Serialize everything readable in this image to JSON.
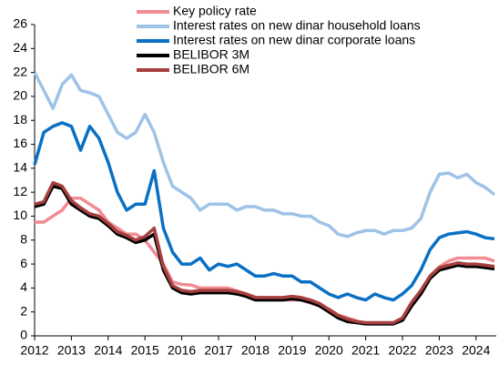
{
  "chart_data": {
    "type": "line",
    "x": [
      2012,
      2012.25,
      2012.5,
      2012.75,
      2013,
      2013.25,
      2013.5,
      2013.75,
      2014,
      2014.25,
      2014.5,
      2014.75,
      2015,
      2015.25,
      2015.5,
      2015.75,
      2016,
      2016.25,
      2016.5,
      2016.75,
      2017,
      2017.25,
      2017.5,
      2017.75,
      2018,
      2018.25,
      2018.5,
      2018.75,
      2019,
      2019.25,
      2019.5,
      2019.75,
      2020,
      2020.25,
      2020.5,
      2020.75,
      2021,
      2021.25,
      2021.5,
      2021.75,
      2022,
      2022.25,
      2022.5,
      2022.75,
      2023,
      2023.25,
      2023.5,
      2023.75,
      2024,
      2024.25,
      2024.5
    ],
    "series": [
      {
        "name": "Key policy rate",
        "color": "#f28b93",
        "values": [
          9.5,
          9.5,
          10.0,
          10.5,
          11.5,
          11.5,
          11.0,
          10.5,
          9.5,
          9.0,
          8.5,
          8.5,
          8.0,
          7.0,
          6.0,
          4.5,
          4.3,
          4.25,
          4.0,
          4.0,
          4.0,
          4.0,
          3.75,
          3.5,
          3.25,
          3.0,
          3.0,
          3.0,
          3.0,
          3.0,
          2.75,
          2.5,
          2.25,
          1.75,
          1.5,
          1.25,
          1.0,
          1.0,
          1.0,
          1.0,
          1.5,
          2.5,
          3.5,
          5.0,
          5.75,
          6.25,
          6.5,
          6.5,
          6.5,
          6.5,
          6.25
        ]
      },
      {
        "name": "Interest rates on new dinar household loans",
        "color": "#9dc3e6",
        "values": [
          22,
          20.5,
          19,
          21,
          21.8,
          20.5,
          20.3,
          20,
          18.5,
          17,
          16.5,
          17,
          18.5,
          17,
          14.5,
          12.5,
          12,
          11.5,
          10.5,
          11,
          11,
          11,
          10.5,
          10.8,
          10.8,
          10.5,
          10.5,
          10.2,
          10.2,
          10,
          10,
          9.5,
          9.2,
          8.5,
          8.3,
          8.6,
          8.8,
          8.8,
          8.5,
          8.8,
          8.8,
          9.0,
          9.8,
          12.0,
          13.5,
          13.6,
          13.2,
          13.5,
          12.8,
          12.4,
          11.8
        ]
      },
      {
        "name": "Interest rates on new dinar corporate loans",
        "color": "#0a70c4",
        "values": [
          14.3,
          17,
          17.5,
          17.8,
          17.5,
          15.5,
          17.5,
          16.5,
          14.5,
          12,
          10.5,
          11,
          11,
          13.8,
          9,
          7,
          6,
          6,
          6.5,
          5.5,
          6,
          5.8,
          6,
          5.5,
          5,
          5,
          5.2,
          5,
          5,
          4.5,
          4.5,
          4,
          3.5,
          3.2,
          3.5,
          3.2,
          3.0,
          3.5,
          3.2,
          3.0,
          3.5,
          4.2,
          5.5,
          7.2,
          8.2,
          8.5,
          8.6,
          8.7,
          8.5,
          8.2,
          8.1
        ]
      },
      {
        "name": "BELIBOR 3M",
        "color": "#000000",
        "values": [
          10.8,
          11.0,
          12.5,
          12.3,
          11.0,
          10.5,
          10.0,
          9.8,
          9.2,
          8.5,
          8.2,
          7.8,
          8.0,
          8.5,
          5.5,
          4.0,
          3.6,
          3.5,
          3.6,
          3.6,
          3.6,
          3.6,
          3.5,
          3.3,
          3.0,
          3.0,
          3.0,
          3.0,
          3.1,
          3.0,
          2.8,
          2.5,
          2.0,
          1.5,
          1.2,
          1.1,
          1.0,
          1.0,
          1.0,
          1.0,
          1.3,
          2.5,
          3.5,
          4.8,
          5.5,
          5.7,
          5.9,
          5.8,
          5.8,
          5.7,
          5.6
        ]
      },
      {
        "name": "BELIBOR 6M",
        "color": "#a6403f",
        "values": [
          11.0,
          11.2,
          12.8,
          12.5,
          11.3,
          10.7,
          10.2,
          10.0,
          9.4,
          8.7,
          8.4,
          8.0,
          8.3,
          9.0,
          5.8,
          4.2,
          3.8,
          3.7,
          3.8,
          3.8,
          3.8,
          3.8,
          3.7,
          3.5,
          3.2,
          3.2,
          3.2,
          3.2,
          3.3,
          3.2,
          3.0,
          2.7,
          2.2,
          1.7,
          1.4,
          1.2,
          1.1,
          1.1,
          1.1,
          1.1,
          1.5,
          2.8,
          3.8,
          5.0,
          5.7,
          5.9,
          6.1,
          6.0,
          6.0,
          5.9,
          5.8
        ]
      }
    ],
    "xlim": [
      2012,
      2024.55
    ],
    "xticks": [
      2012,
      2013,
      2014,
      2015,
      2016,
      2017,
      2018,
      2019,
      2020,
      2021,
      2022,
      2023,
      2024
    ],
    "ylim": [
      0,
      26
    ],
    "yticks": [
      0,
      2,
      4,
      6,
      8,
      10,
      12,
      14,
      16,
      18,
      20,
      22,
      24,
      26
    ],
    "grid": false,
    "legend": "top"
  }
}
